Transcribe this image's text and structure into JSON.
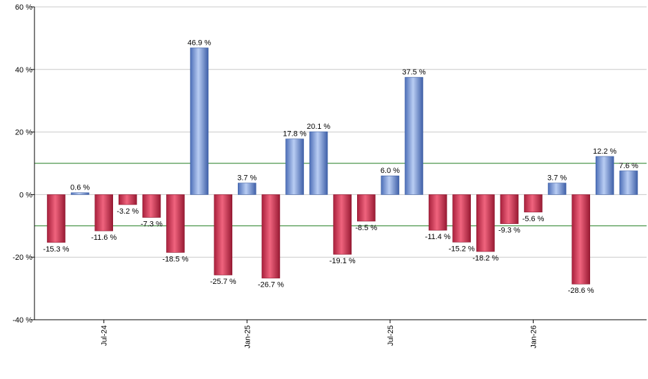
{
  "chart_data": {
    "type": "bar",
    "title": "",
    "xlabel": "",
    "ylabel": "",
    "ylim": [
      -40,
      60
    ],
    "y_ticks": [
      "-40 %",
      "-20 %",
      "0 %",
      "20 %",
      "40 %",
      "60 %"
    ],
    "y_tick_values": [
      -40,
      -20,
      0,
      20,
      40,
      60
    ],
    "x_ticks": [
      {
        "label": "Jul-24",
        "index": 2
      },
      {
        "label": "Jan-25",
        "index": 8
      },
      {
        "label": "Jul-25",
        "index": 14
      },
      {
        "label": "Jan-26",
        "index": 20
      }
    ],
    "values": [
      -15.3,
      0.6,
      -11.6,
      -3.2,
      -7.3,
      -18.5,
      46.9,
      -25.7,
      3.7,
      -26.7,
      17.8,
      20.1,
      -19.1,
      -8.5,
      6.0,
      37.5,
      -11.4,
      -15.2,
      -18.2,
      -9.3,
      -5.6,
      3.7,
      -28.6,
      12.2,
      7.6
    ],
    "value_labels": [
      "-15.3 %",
      "0.6 %",
      "-11.6 %",
      "-3.2 %",
      "-7.3 %",
      "-18.5 %",
      "46.9 %",
      "-25.7 %",
      "3.7 %",
      "-26.7 %",
      "17.8 %",
      "20.1 %",
      "-19.1 %",
      "-8.5 %",
      "6.0 %",
      "37.5 %",
      "-11.4 %",
      "-15.2 %",
      "-18.2 %",
      "-9.3 %",
      "-5.6 %",
      "3.7 %",
      "-28.6 %",
      "12.2 %",
      "7.6 %"
    ],
    "reference_lines": [
      10,
      -10
    ],
    "grid": true,
    "legend": "none",
    "colors": {
      "positive": "#6f93d6",
      "negative": "#d4334f",
      "reference_line": "#1a7a1a",
      "grid": "#c8c8c8",
      "axis": "#000000"
    }
  }
}
